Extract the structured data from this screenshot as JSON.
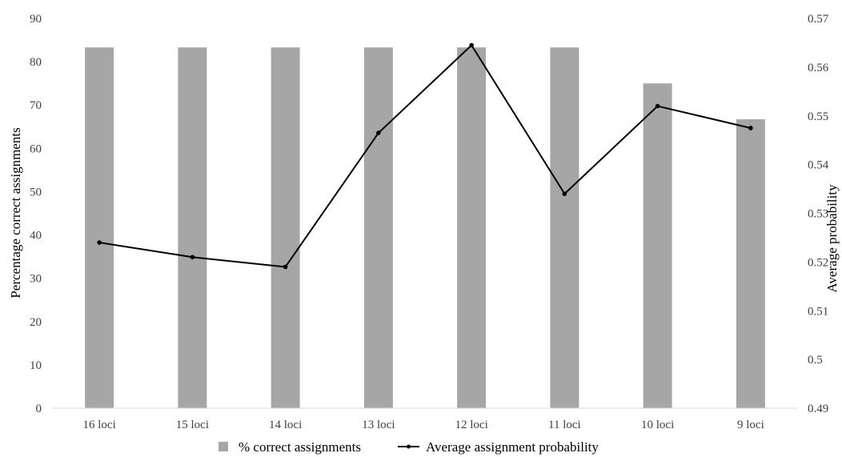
{
  "chart_data": {
    "type": "bar",
    "categories": [
      "16 loci",
      "15 loci",
      "14 loci",
      "13 loci",
      "12 loci",
      "11 loci",
      "10 loci",
      "9 loci"
    ],
    "series": [
      {
        "name": "% correct assignments",
        "type": "bar",
        "axis": "left",
        "values": [
          83.3,
          83.3,
          83.3,
          83.3,
          83.3,
          83.3,
          75.0,
          66.7
        ],
        "color": "#a6a6a6"
      },
      {
        "name": "Average assignment probability",
        "type": "line",
        "axis": "right",
        "values": [
          0.524,
          0.521,
          0.519,
          0.5465,
          0.5645,
          0.534,
          0.552,
          0.5475
        ],
        "color": "#000000"
      }
    ],
    "title": "",
    "xlabel": "",
    "ylabel": "Percentage correct assignments",
    "y2label": "Average probability",
    "ylim": [
      0,
      90
    ],
    "y2lim": [
      0.49,
      0.57
    ],
    "yticks": [
      "0",
      "10",
      "20",
      "30",
      "40",
      "50",
      "60",
      "70",
      "80",
      "90"
    ],
    "y2ticks": [
      "0.49",
      "0.5",
      "0.51",
      "0.52",
      "0.53",
      "0.54",
      "0.55",
      "0.56",
      "0.57"
    ],
    "grid": false,
    "legend": "bottom"
  }
}
